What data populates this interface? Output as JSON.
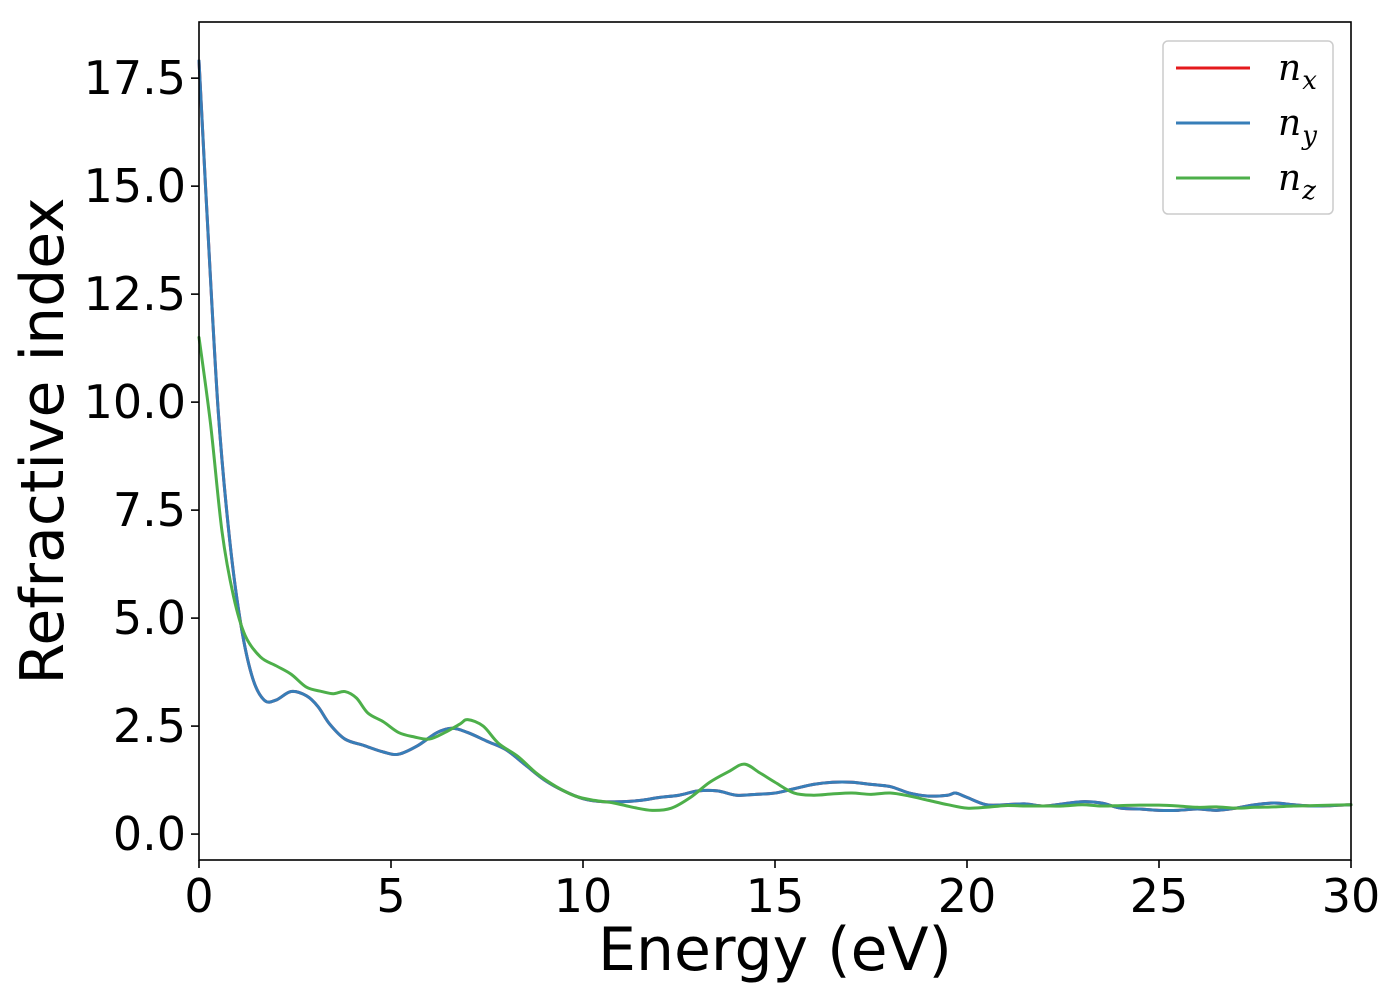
{
  "chart_data": {
    "type": "line",
    "title": "",
    "xlabel": "Energy (eV)",
    "ylabel": "Refractive index",
    "xlim": [
      0,
      30
    ],
    "ylim": [
      -0.6,
      18.8
    ],
    "xticks": [
      0,
      5,
      10,
      15,
      20,
      25,
      30
    ],
    "xtick_labels": [
      "0",
      "5",
      "10",
      "15",
      "20",
      "25",
      "30"
    ],
    "yticks": [
      0.0,
      2.5,
      5.0,
      7.5,
      10.0,
      12.5,
      15.0,
      17.5
    ],
    "ytick_labels": [
      "0.0",
      "2.5",
      "5.0",
      "7.5",
      "10.0",
      "12.5",
      "15.0",
      "17.5"
    ],
    "grid": false,
    "legend_position": "top-right",
    "series": [
      {
        "name": "n",
        "subscript": "x",
        "color": "#e41a1c",
        "x": [
          0,
          0.2,
          0.5,
          0.8,
          1.1,
          1.4,
          1.7,
          2.0,
          2.4,
          2.8,
          3.1,
          3.4,
          3.8,
          4.3,
          4.8,
          5.2,
          5.7,
          6.2,
          6.6,
          7.0,
          7.5,
          8.0,
          8.5,
          9.0,
          9.5,
          10.0,
          10.5,
          11.0,
          11.5,
          12.0,
          12.5,
          13.0,
          13.5,
          14.0,
          14.5,
          15.0,
          15.5,
          16.0,
          16.5,
          17.0,
          17.5,
          18.0,
          18.5,
          19.0,
          19.5,
          19.7,
          20.0,
          20.5,
          21.0,
          21.5,
          22.0,
          22.5,
          23.0,
          23.5,
          24.0,
          24.5,
          25.0,
          25.5,
          26.0,
          26.5,
          27.0,
          27.5,
          28.0,
          28.5,
          29.0,
          29.5,
          30.0
        ],
        "y": [
          17.9,
          14.5,
          9.8,
          6.8,
          4.8,
          3.6,
          3.1,
          3.1,
          3.3,
          3.2,
          2.95,
          2.55,
          2.2,
          2.05,
          1.9,
          1.85,
          2.05,
          2.35,
          2.45,
          2.35,
          2.15,
          1.95,
          1.6,
          1.25,
          1.0,
          0.82,
          0.75,
          0.75,
          0.78,
          0.85,
          0.9,
          1.0,
          1.0,
          0.9,
          0.92,
          0.95,
          1.05,
          1.15,
          1.2,
          1.2,
          1.15,
          1.1,
          0.95,
          0.88,
          0.9,
          0.95,
          0.85,
          0.68,
          0.68,
          0.7,
          0.65,
          0.7,
          0.75,
          0.72,
          0.6,
          0.58,
          0.55,
          0.55,
          0.58,
          0.55,
          0.6,
          0.68,
          0.72,
          0.68,
          0.65,
          0.66,
          0.68
        ]
      },
      {
        "name": "n",
        "subscript": "y",
        "color": "#377eb8",
        "x": [
          0,
          0.2,
          0.5,
          0.8,
          1.1,
          1.4,
          1.7,
          2.0,
          2.4,
          2.8,
          3.1,
          3.4,
          3.8,
          4.3,
          4.8,
          5.2,
          5.7,
          6.2,
          6.6,
          7.0,
          7.5,
          8.0,
          8.5,
          9.0,
          9.5,
          10.0,
          10.5,
          11.0,
          11.5,
          12.0,
          12.5,
          13.0,
          13.5,
          14.0,
          14.5,
          15.0,
          15.5,
          16.0,
          16.5,
          17.0,
          17.5,
          18.0,
          18.5,
          19.0,
          19.5,
          19.7,
          20.0,
          20.5,
          21.0,
          21.5,
          22.0,
          22.5,
          23.0,
          23.5,
          24.0,
          24.5,
          25.0,
          25.5,
          26.0,
          26.5,
          27.0,
          27.5,
          28.0,
          28.5,
          29.0,
          29.5,
          30.0
        ],
        "y": [
          17.9,
          14.5,
          9.8,
          6.8,
          4.8,
          3.6,
          3.1,
          3.1,
          3.3,
          3.2,
          2.95,
          2.55,
          2.2,
          2.05,
          1.9,
          1.85,
          2.05,
          2.35,
          2.45,
          2.35,
          2.15,
          1.95,
          1.6,
          1.25,
          1.0,
          0.82,
          0.75,
          0.75,
          0.78,
          0.85,
          0.9,
          1.0,
          1.0,
          0.9,
          0.92,
          0.95,
          1.05,
          1.15,
          1.2,
          1.2,
          1.15,
          1.1,
          0.95,
          0.88,
          0.9,
          0.95,
          0.85,
          0.68,
          0.68,
          0.7,
          0.65,
          0.7,
          0.75,
          0.72,
          0.6,
          0.58,
          0.55,
          0.55,
          0.58,
          0.55,
          0.6,
          0.68,
          0.72,
          0.68,
          0.65,
          0.66,
          0.68
        ]
      },
      {
        "name": "n",
        "subscript": "z",
        "color": "#4daf4a",
        "x": [
          0,
          0.3,
          0.6,
          0.9,
          1.2,
          1.6,
          2.0,
          2.4,
          2.8,
          3.2,
          3.5,
          3.8,
          4.1,
          4.4,
          4.8,
          5.2,
          5.6,
          6.0,
          6.4,
          6.8,
          7.0,
          7.4,
          7.8,
          8.3,
          8.8,
          9.3,
          9.8,
          10.3,
          10.8,
          11.3,
          11.8,
          12.3,
          12.8,
          13.3,
          13.8,
          14.2,
          14.6,
          15.0,
          15.5,
          16.0,
          16.5,
          17.0,
          17.5,
          18.0,
          18.5,
          19.0,
          19.5,
          20.0,
          20.5,
          21.0,
          21.5,
          22.0,
          22.5,
          23.0,
          23.5,
          24.0,
          24.5,
          25.0,
          25.5,
          26.0,
          26.5,
          27.0,
          27.5,
          28.0,
          28.5,
          29.0,
          29.5,
          30.0
        ],
        "y": [
          11.5,
          9.5,
          7.0,
          5.5,
          4.6,
          4.1,
          3.9,
          3.7,
          3.4,
          3.3,
          3.25,
          3.3,
          3.15,
          2.8,
          2.6,
          2.35,
          2.25,
          2.2,
          2.35,
          2.55,
          2.65,
          2.5,
          2.1,
          1.8,
          1.4,
          1.1,
          0.88,
          0.78,
          0.72,
          0.62,
          0.55,
          0.6,
          0.85,
          1.2,
          1.45,
          1.62,
          1.42,
          1.2,
          0.95,
          0.9,
          0.93,
          0.95,
          0.92,
          0.95,
          0.88,
          0.78,
          0.68,
          0.6,
          0.62,
          0.66,
          0.65,
          0.65,
          0.65,
          0.68,
          0.65,
          0.66,
          0.67,
          0.67,
          0.65,
          0.62,
          0.63,
          0.6,
          0.62,
          0.63,
          0.65,
          0.66,
          0.67,
          0.68
        ]
      }
    ]
  }
}
